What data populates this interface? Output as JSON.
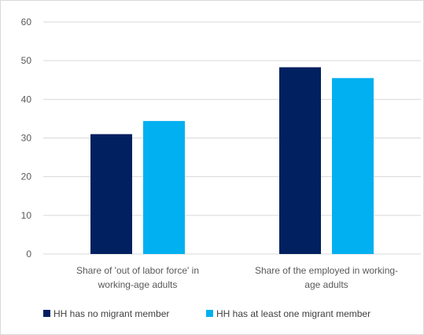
{
  "chart_data": {
    "type": "bar",
    "categories": [
      [
        "Share of 'out of labor force' in",
        "working-age adults"
      ],
      [
        "Share of the employed in working-",
        "age adults"
      ]
    ],
    "series": [
      {
        "name": "HH has no migrant member",
        "values": [
          31,
          48.3
        ],
        "color": "#002060"
      },
      {
        "name": "HH has at least one migrant member",
        "values": [
          34.4,
          45.5
        ],
        "color": "#00b0f0"
      }
    ],
    "ylim": [
      0,
      60
    ],
    "yticks": [
      0,
      10,
      20,
      30,
      40,
      50,
      60
    ],
    "title": "",
    "xlabel": "",
    "ylabel": "",
    "grid": true,
    "legend_position": "bottom"
  }
}
